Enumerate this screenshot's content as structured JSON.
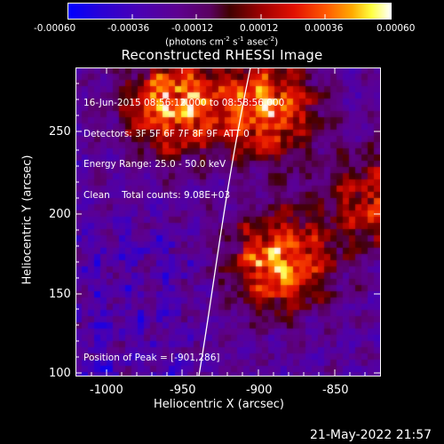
{
  "colorbar": {
    "ticks": [
      "-0.00060",
      "-0.00036",
      "-0.00012",
      "0.00012",
      "0.00036",
      "0.00060"
    ],
    "units_main": "(photons cm",
    "units_exp1": "-2",
    "units_mid": " s",
    "units_exp2": "-1",
    "units_end": " asec",
    "units_exp3": "-2",
    "units_close": ")"
  },
  "plot": {
    "title": "Reconstructed RHESSI Image",
    "info_lines": [
      "16-Jun-2015 08:56:12.000 to 08:58:56.000",
      "Detectors: 3F 5F 6F 7F 8F 9F  ATT 0",
      "Energy Range: 25.0 - 50.0 keV",
      "Clean    Total counts: 9.08E+03"
    ],
    "peak_label": "Position of Peak = [-901,286]",
    "xlabel": "Heliocentric X (arcsec)",
    "ylabel": "Heliocentric Y (arcsec)",
    "xticks": [
      "-1000",
      "-950",
      "-900",
      "-850"
    ],
    "yticks": [
      "100",
      "150",
      "200",
      "250"
    ],
    "timestamp": "21-May-2022 21:57"
  },
  "chart_data": {
    "type": "heatmap",
    "title": "Reconstructed RHESSI Image",
    "xlabel": "Heliocentric X (arcsec)",
    "ylabel": "Heliocentric Y (arcsec)",
    "xlim": [
      -1020,
      -826
    ],
    "ylim": [
      98,
      294
    ],
    "x_ticks": [
      -1000,
      -950,
      -900,
      -850
    ],
    "y_ticks": [
      100,
      150,
      200,
      250
    ],
    "color_range": [
      -0.0006,
      0.0006
    ],
    "colorbar_unit": "photons cm^-2 s^-1 asec^-2",
    "colormap": "blue-purple-red-orange-yellow-white",
    "peak_position": [
      -901,
      286
    ],
    "sources": [
      {
        "x": -960,
        "y": 272,
        "level": "bright"
      },
      {
        "x": -900,
        "y": 270,
        "level": "bright"
      },
      {
        "x": -892,
        "y": 172,
        "level": "bright"
      },
      {
        "x": -832,
        "y": 210,
        "level": "moderate"
      }
    ],
    "limb": [
      [
        -938,
        98
      ],
      [
        -922,
        175
      ],
      [
        -897,
        294
      ]
    ]
  }
}
